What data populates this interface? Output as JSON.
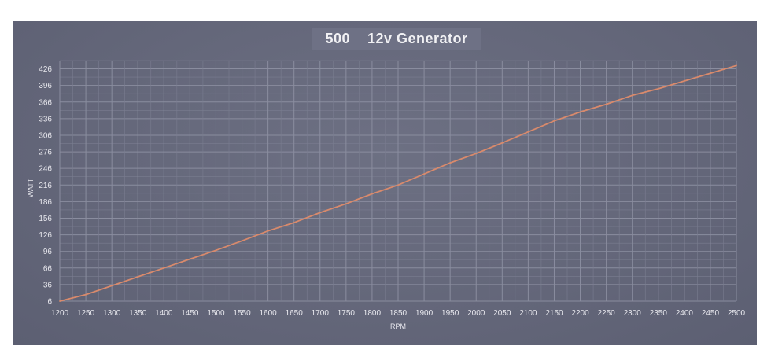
{
  "chart_data": {
    "type": "line",
    "title": "500    12v Generator",
    "xlabel": "RPM",
    "ylabel": "WATT",
    "x_ticks": [
      1200,
      1250,
      1300,
      1350,
      1400,
      1450,
      1500,
      1550,
      1600,
      1650,
      1700,
      1750,
      1800,
      1850,
      1900,
      1950,
      2000,
      2050,
      2100,
      2150,
      2200,
      2250,
      2300,
      2350,
      2400,
      2450,
      2500
    ],
    "y_ticks": [
      6,
      36,
      66,
      96,
      126,
      156,
      186,
      216,
      246,
      276,
      306,
      336,
      366,
      396,
      426
    ],
    "xlim": [
      1200,
      2500
    ],
    "ylim": [
      6,
      441
    ],
    "grid": true,
    "line_color": "#d98a6c",
    "background_color": "#64677a",
    "series": [
      {
        "x": [
          1200,
          1250,
          1300,
          1350,
          1400,
          1450,
          1500,
          1550,
          1600,
          1650,
          1700,
          1750,
          1800,
          1850,
          1900,
          1950,
          2000,
          2050,
          2100,
          2150,
          2200,
          2250,
          2300,
          2350,
          2400,
          2450,
          2500
        ],
        "values": [
          6,
          18,
          34,
          50,
          66,
          82,
          98,
          115,
          133,
          148,
          166,
          182,
          200,
          216,
          236,
          256,
          273,
          292,
          312,
          332,
          348,
          362,
          378,
          390,
          404,
          418,
          432
        ]
      }
    ]
  }
}
